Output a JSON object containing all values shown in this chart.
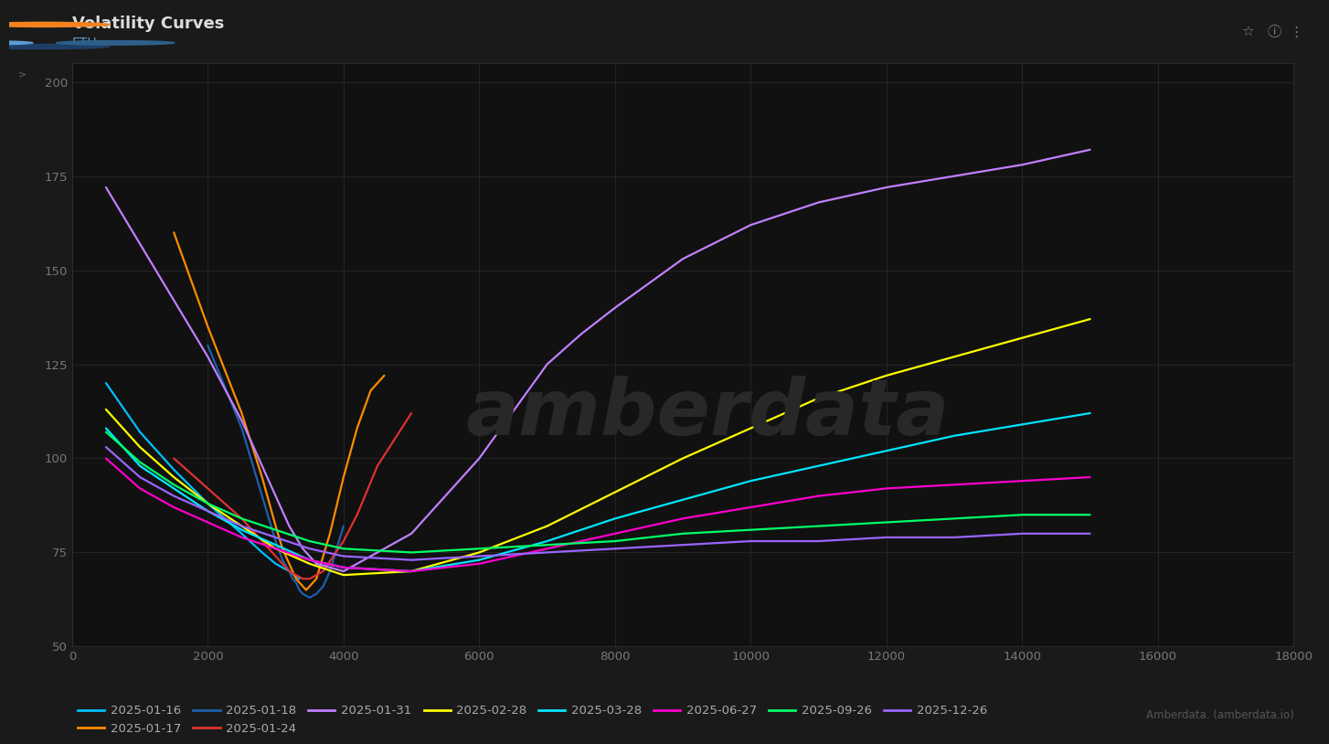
{
  "title": "Volatility Curves",
  "subtitle": "ETH",
  "header_bg": "#3a3a3a",
  "plot_bg_color": "#111111",
  "fig_bg_color": "#1a1a1a",
  "text_color": "#cccccc",
  "xlim": [
    0,
    18000
  ],
  "ylim": [
    50,
    205
  ],
  "xlabel_ticks": [
    0,
    2000,
    4000,
    6000,
    8000,
    10000,
    12000,
    14000,
    16000,
    18000
  ],
  "ylabel_ticks": [
    50,
    75,
    100,
    125,
    150,
    175,
    200
  ],
  "curves": [
    {
      "label": "2025-01-16",
      "color": "#00bfff",
      "x": [
        500,
        1000,
        1500,
        2000,
        2500,
        2800,
        3000,
        3200,
        3350
      ],
      "y": [
        120,
        107,
        97,
        88,
        80,
        75,
        72,
        70,
        68
      ]
    },
    {
      "label": "2025-01-17",
      "color": "#ff8c00",
      "x": [
        1500,
        2000,
        2500,
        2800,
        3000,
        3100,
        3200,
        3300,
        3450,
        3600,
        3800,
        4000,
        4200,
        4400,
        4600
      ],
      "y": [
        160,
        135,
        112,
        95,
        82,
        76,
        72,
        68,
        65,
        68,
        80,
        95,
        108,
        118,
        122
      ]
    },
    {
      "label": "2025-01-18",
      "color": "#1e5faa",
      "x": [
        2000,
        2500,
        2800,
        3000,
        3100,
        3200,
        3250,
        3300,
        3350,
        3400,
        3500,
        3600,
        3700,
        3800,
        4000
      ],
      "y": [
        130,
        108,
        90,
        78,
        73,
        70,
        68,
        67,
        65,
        64,
        63,
        64,
        66,
        70,
        82
      ]
    },
    {
      "label": "2025-01-24",
      "color": "#e03030",
      "x": [
        1500,
        2000,
        2500,
        2800,
        3000,
        3100,
        3200,
        3300,
        3400,
        3500,
        3700,
        4000,
        4200,
        4500,
        5000
      ],
      "y": [
        100,
        92,
        84,
        78,
        74,
        72,
        70,
        69,
        68,
        68,
        70,
        78,
        85,
        98,
        112
      ]
    },
    {
      "label": "2025-01-31",
      "color": "#c080ff",
      "x": [
        500,
        1000,
        1500,
        2000,
        2500,
        3000,
        3200,
        3400,
        3600,
        4000,
        5000,
        6000,
        7000,
        7500,
        8000,
        9000,
        10000,
        11000,
        12000,
        13000,
        14000,
        15000
      ],
      "y": [
        172,
        157,
        142,
        127,
        110,
        90,
        82,
        76,
        72,
        70,
        80,
        100,
        125,
        133,
        140,
        153,
        162,
        168,
        172,
        175,
        178,
        182
      ]
    },
    {
      "label": "2025-02-28",
      "color": "#ffff00",
      "x": [
        500,
        1000,
        1500,
        2000,
        2500,
        3000,
        3500,
        4000,
        5000,
        6000,
        7000,
        8000,
        9000,
        10000,
        11000,
        12000,
        13000,
        14000,
        15000
      ],
      "y": [
        113,
        103,
        95,
        88,
        82,
        76,
        72,
        69,
        70,
        75,
        82,
        91,
        100,
        108,
        116,
        122,
        127,
        132,
        137
      ]
    },
    {
      "label": "2025-03-28",
      "color": "#00e5ff",
      "x": [
        500,
        1000,
        1500,
        2000,
        2500,
        3000,
        3500,
        4000,
        5000,
        6000,
        7000,
        8000,
        9000,
        10000,
        11000,
        12000,
        13000,
        14000,
        15000
      ],
      "y": [
        108,
        98,
        92,
        86,
        81,
        77,
        73,
        71,
        70,
        73,
        78,
        84,
        89,
        94,
        98,
        102,
        106,
        109,
        112
      ]
    },
    {
      "label": "2025-06-27",
      "color": "#ff00cc",
      "x": [
        500,
        1000,
        1500,
        2000,
        2500,
        3000,
        3500,
        4000,
        5000,
        6000,
        7000,
        8000,
        9000,
        10000,
        11000,
        12000,
        13000,
        14000,
        15000
      ],
      "y": [
        100,
        92,
        87,
        83,
        79,
        76,
        73,
        71,
        70,
        72,
        76,
        80,
        84,
        87,
        90,
        92,
        93,
        94,
        95
      ]
    },
    {
      "label": "2025-09-26",
      "color": "#00ff66",
      "x": [
        500,
        1000,
        1500,
        2000,
        2500,
        3000,
        3500,
        4000,
        5000,
        6000,
        7000,
        8000,
        9000,
        10000,
        11000,
        12000,
        13000,
        14000,
        15000
      ],
      "y": [
        107,
        99,
        93,
        88,
        84,
        81,
        78,
        76,
        75,
        76,
        77,
        78,
        80,
        81,
        82,
        83,
        84,
        85,
        85
      ]
    },
    {
      "label": "2025-12-26",
      "color": "#9966ff",
      "x": [
        500,
        1000,
        1500,
        2000,
        2500,
        3000,
        3500,
        4000,
        5000,
        6000,
        7000,
        8000,
        9000,
        10000,
        11000,
        12000,
        13000,
        14000,
        15000
      ],
      "y": [
        103,
        95,
        90,
        86,
        82,
        79,
        76,
        74,
        73,
        74,
        75,
        76,
        77,
        78,
        78,
        79,
        79,
        80,
        80
      ]
    }
  ],
  "watermark": "amberdata",
  "watermark_color": "#282828",
  "footer_text": "Amberdata. (amberdata.io)",
  "legend_ncol": 8
}
